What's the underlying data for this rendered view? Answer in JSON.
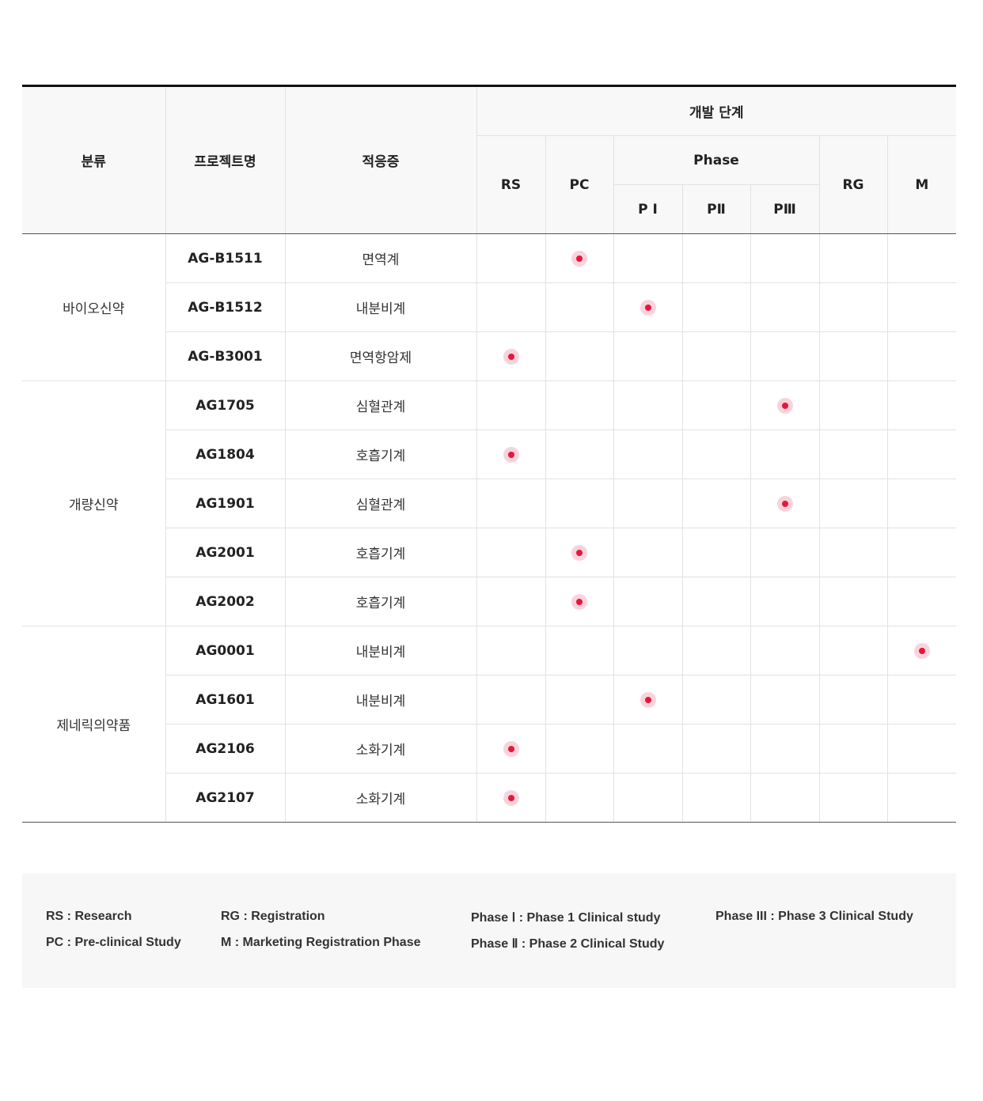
{
  "table": {
    "headers": {
      "category": "분류",
      "project": "프로젝트명",
      "indication": "적응증",
      "development_stage": "개발 단계",
      "rs": "RS",
      "pc": "PC",
      "phase": "Phase",
      "p1": "P Ⅰ",
      "p2": "PⅡ",
      "p3": "PⅢ",
      "rg": "RG",
      "m": "M"
    },
    "groups": [
      {
        "category": "바이오신약",
        "rows": [
          {
            "code": "AG-B1511",
            "indication": "면역계",
            "stage": "PC"
          },
          {
            "code": "AG-B1512",
            "indication": "내분비계",
            "stage": "P1"
          },
          {
            "code": "AG-B3001",
            "indication": "면역항암제",
            "stage": "RS"
          }
        ]
      },
      {
        "category": "개량신약",
        "rows": [
          {
            "code": "AG1705",
            "indication": "심혈관계",
            "stage": "P3"
          },
          {
            "code": "AG1804",
            "indication": "호흡기계",
            "stage": "RS"
          },
          {
            "code": "AG1901",
            "indication": "심혈관계",
            "stage": "P3"
          },
          {
            "code": "AG2001",
            "indication": "호흡기계",
            "stage": "PC"
          },
          {
            "code": "AG2002",
            "indication": "호흡기계",
            "stage": "PC"
          }
        ]
      },
      {
        "category": "제네릭의약품",
        "rows": [
          {
            "code": "AG0001",
            "indication": "내분비계",
            "stage": "M"
          },
          {
            "code": "AG1601",
            "indication": "내분비계",
            "stage": "P1"
          },
          {
            "code": "AG2106",
            "indication": "소화기계",
            "stage": "RS"
          },
          {
            "code": "AG2107",
            "indication": "소화기계",
            "stage": "RS"
          }
        ]
      }
    ]
  },
  "legend": {
    "rs": "RS : Research",
    "pc": "PC : Pre-clinical Study",
    "rg": "RG : Registration",
    "m": "M : Marketing Registration Phase",
    "p1": "Phase Ⅰ : Phase 1 Clinical study",
    "p2": "Phase Ⅱ : Phase 2 Clinical Study",
    "p3": "Phase III : Phase 3 Clinical Study"
  },
  "colors": {
    "marker_core": "#e4183c",
    "marker_halo": "#f9d3db",
    "header_bg": "#f8f8f8",
    "legend_bg": "#f7f7f7"
  }
}
